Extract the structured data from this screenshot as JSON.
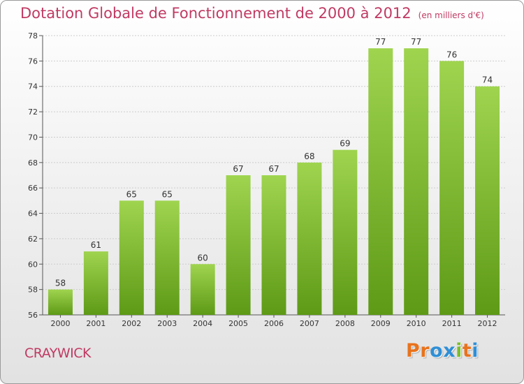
{
  "header": {
    "title": "Dotation Globale de Fonctionnement de 2000 à 2012",
    "subtitle": "(en milliers d'€)"
  },
  "footer": {
    "town": "CRAYWICK",
    "brand": "Proxiti",
    "brand_colors": [
      "#e8731d",
      "#e8731d",
      "#2f8fd6",
      "#2f8fd6",
      "#7bbf2c",
      "#e8731d",
      "#2f8fd6"
    ]
  },
  "colors": {
    "title": "#c03a63",
    "bar_top": "#9fd44f",
    "bar_bottom": "#5e9a16",
    "grid": "#cccccc",
    "axis": "#555555"
  },
  "chart_data": {
    "type": "bar",
    "title": "Dotation Globale de Fonctionnement de 2000 à 2012",
    "subtitle": "(en milliers d'€)",
    "xlabel": "",
    "ylabel": "",
    "categories": [
      "2000",
      "2001",
      "2002",
      "2003",
      "2004",
      "2005",
      "2006",
      "2007",
      "2008",
      "2009",
      "2010",
      "2011",
      "2012"
    ],
    "values": [
      58,
      61,
      65,
      65,
      60,
      67,
      67,
      68,
      69,
      77,
      77,
      76,
      74
    ],
    "ylim": [
      56,
      78
    ],
    "yticks": [
      56,
      58,
      60,
      62,
      64,
      66,
      68,
      70,
      72,
      74,
      76,
      78
    ],
    "grid": "horizontal"
  }
}
